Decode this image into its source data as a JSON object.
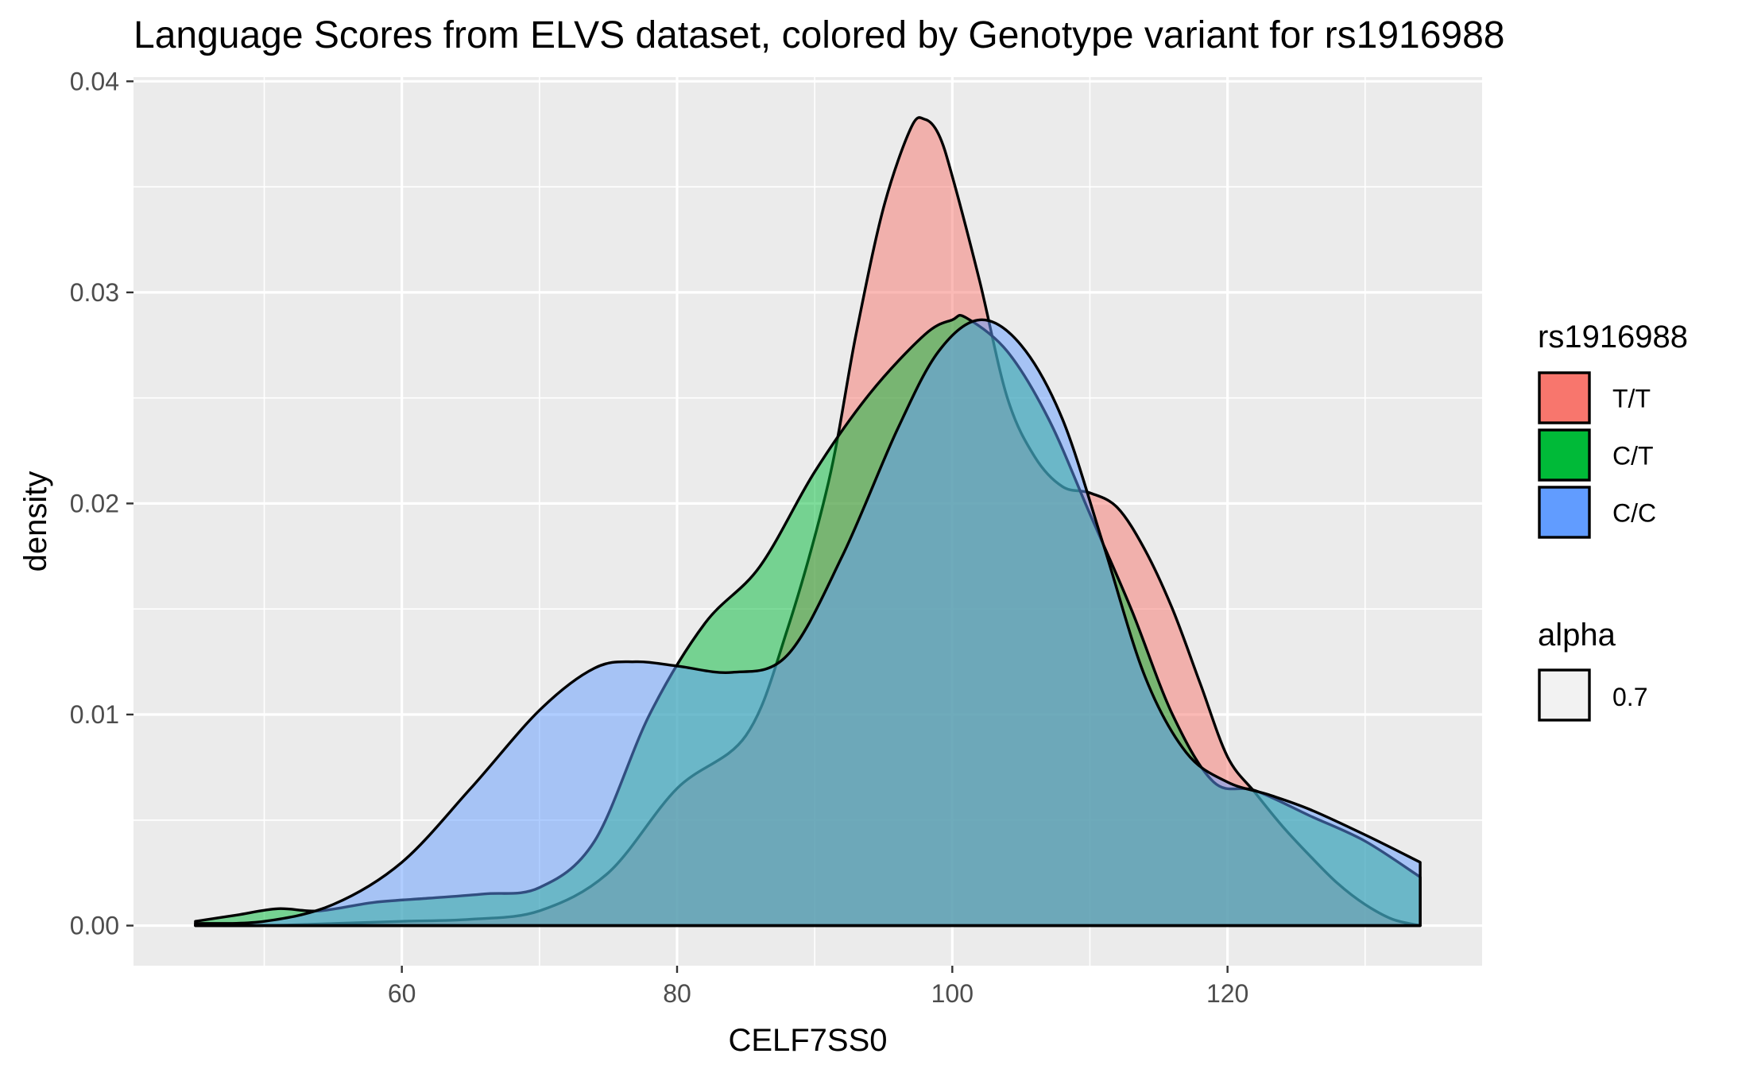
{
  "chart_data": {
    "type": "area",
    "subtype": "density",
    "title": "Language Scores from ELVS dataset, colored by Genotype variant for rs1916988",
    "xlabel": "CELF7SS0",
    "ylabel": "density",
    "xlim": [
      40.5,
      138.5
    ],
    "ylim": [
      -0.0019,
      0.0402
    ],
    "x_ticks": [
      60,
      80,
      100,
      120
    ],
    "x_tick_labels": [
      "60",
      "80",
      "100",
      "120"
    ],
    "y_ticks": [
      0,
      0.01,
      0.02,
      0.03,
      0.04
    ],
    "y_tick_labels": [
      "0.00",
      "0.01",
      "0.02",
      "0.03",
      "0.04"
    ],
    "grid": true,
    "fill_alpha": 0.5,
    "legend": {
      "position": "right",
      "title": "rs1916988",
      "alpha_title": "alpha",
      "alpha_value": "0.7"
    },
    "series": [
      {
        "name": "T/T",
        "color": "#F8766D",
        "x": [
          45,
          50,
          55,
          60,
          65,
          70,
          75,
          80,
          85,
          88,
          91,
          93,
          95,
          97,
          98,
          99,
          100,
          102,
          104,
          106,
          108,
          110,
          112,
          114,
          116,
          118,
          120,
          122,
          124,
          126,
          128,
          130,
          132,
          134
        ],
        "y": [
          0.0,
          0.0,
          0.0001,
          0.0002,
          0.0003,
          0.0007,
          0.0025,
          0.0065,
          0.009,
          0.014,
          0.021,
          0.028,
          0.034,
          0.0378,
          0.0382,
          0.0375,
          0.0355,
          0.0305,
          0.025,
          0.0222,
          0.0208,
          0.0205,
          0.0198,
          0.0178,
          0.015,
          0.0115,
          0.008,
          0.0063,
          0.0047,
          0.0033,
          0.002,
          0.001,
          0.0003,
          0.0
        ]
      },
      {
        "name": "C/T",
        "color": "#00BA38",
        "x": [
          45,
          48,
          51,
          54,
          58,
          62,
          66,
          70,
          74,
          78,
          82,
          86,
          90,
          94,
          98,
          100,
          101,
          104,
          107,
          110,
          113,
          116,
          119,
          122,
          126,
          130,
          134
        ],
        "y": [
          0.0002,
          0.0005,
          0.0008,
          0.0007,
          0.0011,
          0.0013,
          0.0015,
          0.0018,
          0.004,
          0.01,
          0.0143,
          0.017,
          0.0215,
          0.0252,
          0.028,
          0.0287,
          0.0288,
          0.0272,
          0.024,
          0.0195,
          0.015,
          0.01,
          0.0068,
          0.0064,
          0.0052,
          0.004,
          0.0023
        ]
      },
      {
        "name": "C/C",
        "color": "#619CFF",
        "x": [
          45,
          50,
          55,
          60,
          65,
          70,
          74,
          77,
          80,
          84,
          88,
          92,
          96,
          99,
          102,
          105,
          108,
          111,
          114,
          117,
          120,
          123,
          126,
          130,
          134
        ],
        "y": [
          0.0001,
          0.0002,
          0.001,
          0.003,
          0.0065,
          0.0102,
          0.0122,
          0.0125,
          0.0123,
          0.012,
          0.0128,
          0.0175,
          0.0235,
          0.0272,
          0.0287,
          0.0275,
          0.024,
          0.018,
          0.0118,
          0.0082,
          0.0068,
          0.0062,
          0.0055,
          0.0043,
          0.003
        ]
      }
    ]
  }
}
